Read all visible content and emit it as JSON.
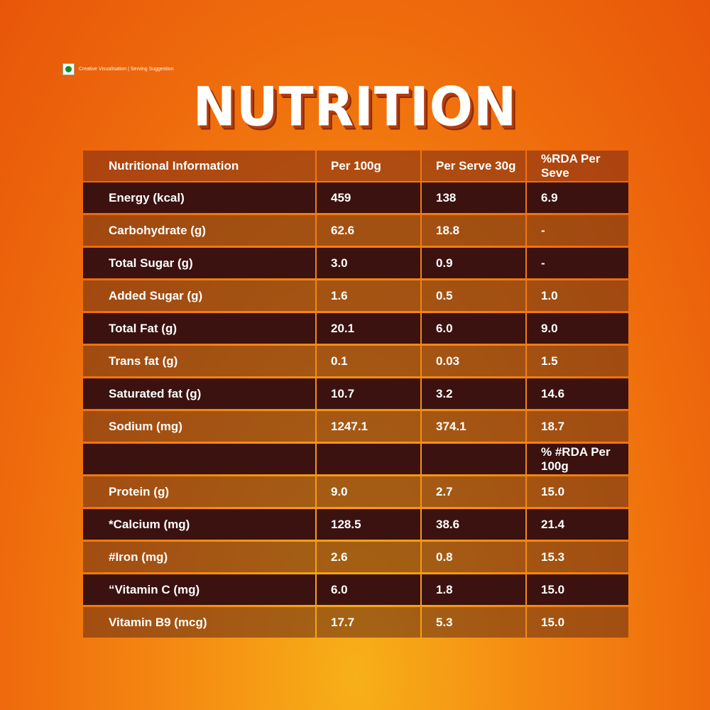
{
  "header": {
    "badge": "Creative Visualisation | Serving Suggestion",
    "title": "NUTRITION"
  },
  "table": {
    "columns": [
      "Nutritional Information",
      "Per 100g",
      "Per Serve 30g",
      "%RDA Per Seve"
    ],
    "rows": [
      [
        "Energy (kcal)",
        "459",
        "138",
        "6.9"
      ],
      [
        "Carbohydrate (g)",
        "62.6",
        "18.8",
        "-"
      ],
      [
        "Total Sugar (g)",
        "3.0",
        "0.9",
        "-"
      ],
      [
        "Added Sugar (g)",
        "1.6",
        "0.5",
        "1.0"
      ],
      [
        "Total Fat (g)",
        "20.1",
        "6.0",
        "9.0"
      ],
      [
        "Trans fat (g)",
        "0.1",
        "0.03",
        "1.5"
      ],
      [
        "Saturated fat (g)",
        "10.7",
        "3.2",
        "14.6"
      ],
      [
        "Sodium (mg)",
        "1247.1",
        "374.1",
        "18.7"
      ],
      [
        null,
        null,
        null,
        "% #RDA Per 100g"
      ],
      [
        "Protein (g)",
        "9.0",
        "2.7",
        "15.0"
      ],
      [
        "*Calcium (mg)",
        "128.5",
        "38.6",
        "21.4"
      ],
      [
        "#Iron (mg)",
        "2.6",
        "0.8",
        "15.3"
      ],
      [
        "“Vitamin C (mg)",
        "6.0",
        "1.8",
        "15.0"
      ],
      [
        "Vitamin B9 (mcg)",
        "17.7",
        "5.3",
        "15.0"
      ]
    ]
  }
}
